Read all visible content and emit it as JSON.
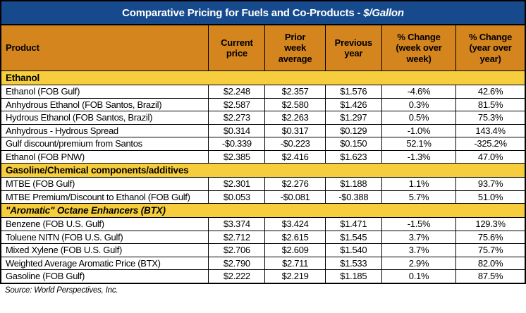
{
  "chart_data": {
    "type": "table",
    "title": "Comparative Pricing for Fuels and Co-Products - $/Gallon",
    "title_regular": "Comparative Pricing for Fuels and Co-Products - ",
    "title_italic": "$/Gallon",
    "columns": [
      "Product",
      "Current\nprice",
      "Prior\nweek\naverage",
      "Previous\nyear",
      "% Change\n(week over\nweek)",
      "% Change\n(year over\nyear)"
    ],
    "sections": [
      {
        "header": "Ethanol",
        "italic": false,
        "rows": [
          [
            "Ethanol (FOB Gulf)",
            "$2.248",
            "$2.357",
            "$1.576",
            "-4.6%",
            "42.6%"
          ],
          [
            "Anhydrous Ethanol (FOB Santos, Brazil)",
            "$2.587",
            "$2.580",
            "$1.426",
            "0.3%",
            "81.5%"
          ],
          [
            "Hydrous Ethanol (FOB Santos, Brazil)",
            "$2.273",
            "$2.263",
            "$1.297",
            "0.5%",
            "75.3%"
          ],
          [
            "Anhydrous - Hydrous Spread",
            "$0.314",
            "$0.317",
            "$0.129",
            "-1.0%",
            "143.4%"
          ],
          [
            "Gulf discount/premium from Santos",
            "-$0.339",
            "-$0.223",
            "$0.150",
            "52.1%",
            "-325.2%"
          ],
          [
            "Ethanol (FOB PNW)",
            "$2.385",
            "$2.416",
            "$1.623",
            "-1.3%",
            "47.0%"
          ]
        ]
      },
      {
        "header": "Gasoline/Chemical components/additives",
        "italic": false,
        "rows": [
          [
            "MTBE (FOB Gulf)",
            "$2.301",
            "$2.276",
            "$1.188",
            "1.1%",
            "93.7%"
          ],
          [
            "MTBE Premium/Discount to Ethanol (FOB Gulf)",
            "$0.053",
            "-$0.081",
            "-$0.388",
            "5.7%",
            "51.0%"
          ]
        ]
      },
      {
        "header": "\"Aromatic\" Octane Enhancers (BTX)",
        "italic": true,
        "rows": [
          [
            "Benzene (FOB U.S. Gulf)",
            "$3.374",
            "$3.424",
            "$1.471",
            "-1.5%",
            "129.3%"
          ],
          [
            "Toluene NITN (FOB U.S. Gulf)",
            "$2.712",
            "$2.615",
            "$1.545",
            "3.7%",
            "75.6%"
          ],
          [
            "Mixed Xylene (FOB U.S. Gulf)",
            "$2.706",
            "$2.609",
            "$1.540",
            "3.7%",
            "75.7%"
          ],
          [
            "Weighted Average Aromatic Price (BTX)",
            "$2.790",
            "$2.711",
            "$1.533",
            "2.9%",
            "82.0%"
          ],
          [
            "Gasoline (FOB Gulf)",
            "$2.222",
            "$2.219",
            "$1.185",
            "0.1%",
            "87.5%"
          ]
        ]
      }
    ],
    "source": "Source: World Perspectives, Inc.",
    "layout": {
      "legend": "none",
      "grid": "all-cell-borders"
    }
  },
  "colors": {
    "title_bar_bg": "#164A8C",
    "title_bar_text": "#FFFFFF",
    "column_header_bg": "#D5851E",
    "section_row_bg": "#F5CD3D",
    "border": "#000000",
    "body_text": "#000000",
    "row_bg": "#FFFFFF"
  }
}
